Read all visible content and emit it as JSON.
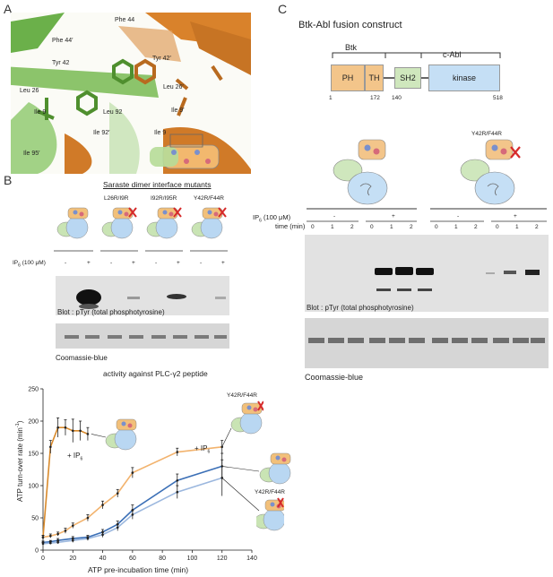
{
  "panels": {
    "A": "A",
    "B": "B",
    "C": "C"
  },
  "panelA": {
    "residues": [
      "Phe 44",
      "Phe 44′",
      "Tyr 42",
      "Tyr 42′",
      "Leu 26",
      "Leu 26′",
      "Ile 9",
      "Leu 92",
      "Ile 9′",
      "Ile 92′",
      "Ile 9",
      "Ile 95′"
    ]
  },
  "panelB": {
    "title": "Saraste dimer interface mutants",
    "mutants": [
      "L26R/I9R",
      "I92R/I95R",
      "Y42R/F44R"
    ],
    "ip6_label": "IP",
    "ip6_sub": "6",
    "ip6_conc": " (100 μM)",
    "lane_signs": [
      "-",
      "+",
      "-",
      "+",
      "-",
      "+",
      "-",
      "+"
    ],
    "blot_caption": "Blot : pTyr (total phosphotyrosine)",
    "gel_caption": "Coomassie-blue"
  },
  "panelC": {
    "title": "Btk-Abl fusion construct",
    "btk_label": "Btk",
    "cabl_label": "c-Abl",
    "domains": [
      "PH",
      "TH",
      "SH2",
      "kinase"
    ],
    "positions": [
      "1",
      "172",
      "140",
      "518"
    ],
    "mutant_label": "Y42R/F44R",
    "ip6_label": "IP",
    "ip6_sub": "6",
    "ip6_conc": " (100 μM)",
    "time_label": "time (min)",
    "group_signs": [
      "-",
      "+",
      "-",
      "+"
    ],
    "times": [
      "0",
      "1",
      "2",
      "0",
      "1",
      "2",
      "0",
      "1",
      "2",
      "0",
      "1",
      "2"
    ],
    "blot_caption": "Blot : pTyr (total phosphotyrosine)",
    "gel_caption": "Coomassie-blue"
  },
  "chart_data": {
    "type": "line",
    "title": "activity against PLC-γ2 peptide",
    "xlabel": "ATP pre-incubation time (min)",
    "ylabel": "ATP turn-over rate (min",
    "ylabel_sup": "-1",
    "ylabel_end": ")",
    "xlim": [
      0,
      140
    ],
    "ylim": [
      0,
      250
    ],
    "xticks": [
      "0",
      "20",
      "40",
      "60",
      "80",
      "100",
      "120",
      "140"
    ],
    "yticks": [
      "0",
      "50",
      "100",
      "150",
      "200",
      "250"
    ],
    "annotations": [
      "+ IP",
      "+ IP",
      "Y42R/F44R",
      "Y42R/F44R"
    ],
    "annotation_sub": "6",
    "colors": {
      "wt_ip6": "#d98a2b",
      "mut_ip6": "#f2b36e",
      "wt": "#3b6fb6",
      "mut": "#9bb7de"
    },
    "series": [
      {
        "x": [
          0,
          5,
          10,
          15,
          20,
          25,
          30
        ],
        "y": [
          20,
          160,
          190,
          190,
          185,
          185,
          180
        ],
        "err": [
          3,
          10,
          15,
          12,
          18,
          15,
          10
        ],
        "color_key": "wt_ip6"
      },
      {
        "x": [
          0,
          5,
          10,
          15,
          20,
          30,
          40,
          50,
          60,
          90,
          120
        ],
        "y": [
          20,
          22,
          25,
          30,
          38,
          50,
          70,
          88,
          120,
          152,
          160
        ],
        "err": [
          3,
          3,
          3,
          4,
          4,
          5,
          6,
          6,
          8,
          6,
          10
        ],
        "color_key": "mut_ip6"
      },
      {
        "x": [
          0,
          5,
          10,
          20,
          30,
          40,
          50,
          60,
          90,
          120
        ],
        "y": [
          12,
          13,
          15,
          18,
          20,
          28,
          40,
          62,
          108,
          130
        ],
        "err": [
          2,
          2,
          3,
          3,
          3,
          4,
          5,
          8,
          10,
          20
        ],
        "color_key": "wt"
      },
      {
        "x": [
          0,
          5,
          10,
          20,
          30,
          40,
          50,
          60,
          90,
          120
        ],
        "y": [
          10,
          11,
          12,
          15,
          18,
          24,
          35,
          55,
          90,
          112
        ],
        "err": [
          2,
          2,
          2,
          3,
          3,
          4,
          5,
          7,
          10,
          28
        ],
        "color_key": "mut"
      }
    ]
  }
}
